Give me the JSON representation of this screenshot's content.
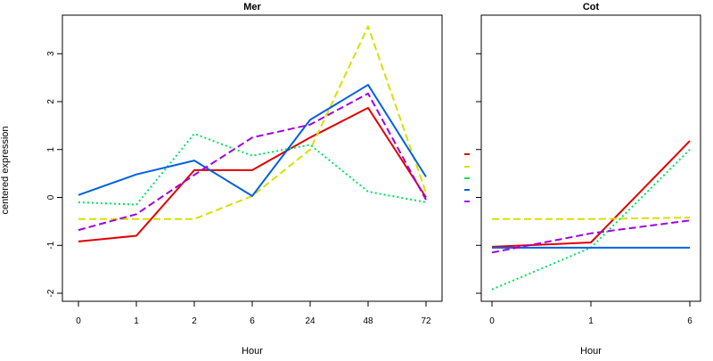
{
  "ylabel": "centered expression",
  "chart_data": [
    {
      "type": "line",
      "title": "Mer",
      "xlabel": "Hour",
      "categories": [
        "0",
        "1",
        "2",
        "6",
        "24",
        "48",
        "72"
      ],
      "yticks": [
        "-2",
        "-1",
        "0",
        "1",
        "2",
        "3"
      ],
      "ylim": [
        -2.2,
        3.7
      ],
      "series": [
        {
          "color": "#e00000",
          "dash": "solid",
          "values": [
            -0.92,
            -0.8,
            0.57,
            0.57,
            1.25,
            1.87,
            0.0
          ]
        },
        {
          "color": "#d8e000",
          "dash": "dashed",
          "values": [
            -0.45,
            -0.45,
            -0.45,
            0.03,
            1.0,
            3.57,
            0.1
          ]
        },
        {
          "color": "#00e060",
          "dash": "dotted",
          "values": [
            -0.1,
            -0.15,
            1.33,
            0.87,
            1.1,
            0.12,
            -0.1
          ]
        },
        {
          "color": "#0060e0",
          "dash": "solid",
          "values": [
            0.05,
            0.48,
            0.77,
            0.03,
            1.62,
            2.35,
            0.43
          ]
        },
        {
          "color": "#a000e0",
          "dash": "dashed",
          "values": [
            -0.68,
            -0.35,
            0.47,
            1.25,
            1.52,
            2.17,
            -0.05
          ]
        }
      ]
    },
    {
      "type": "line",
      "title": "Cot",
      "xlabel": "Hour",
      "categories": [
        "0",
        "1",
        "6"
      ],
      "ylim": [
        -2.2,
        3.7
      ],
      "series": [
        {
          "color": "#e00000",
          "dash": "solid",
          "values": [
            -1.03,
            -0.94,
            1.18
          ]
        },
        {
          "color": "#d8e000",
          "dash": "dashed",
          "values": [
            -0.45,
            -0.45,
            -0.42
          ]
        },
        {
          "color": "#00e060",
          "dash": "dotted",
          "values": [
            -1.92,
            -1.05,
            1.0
          ]
        },
        {
          "color": "#0060e0",
          "dash": "solid",
          "values": [
            -1.05,
            -1.05,
            -1.05
          ]
        },
        {
          "color": "#a000e0",
          "dash": "dashed",
          "values": [
            -1.15,
            -0.75,
            -0.48
          ]
        }
      ]
    }
  ]
}
